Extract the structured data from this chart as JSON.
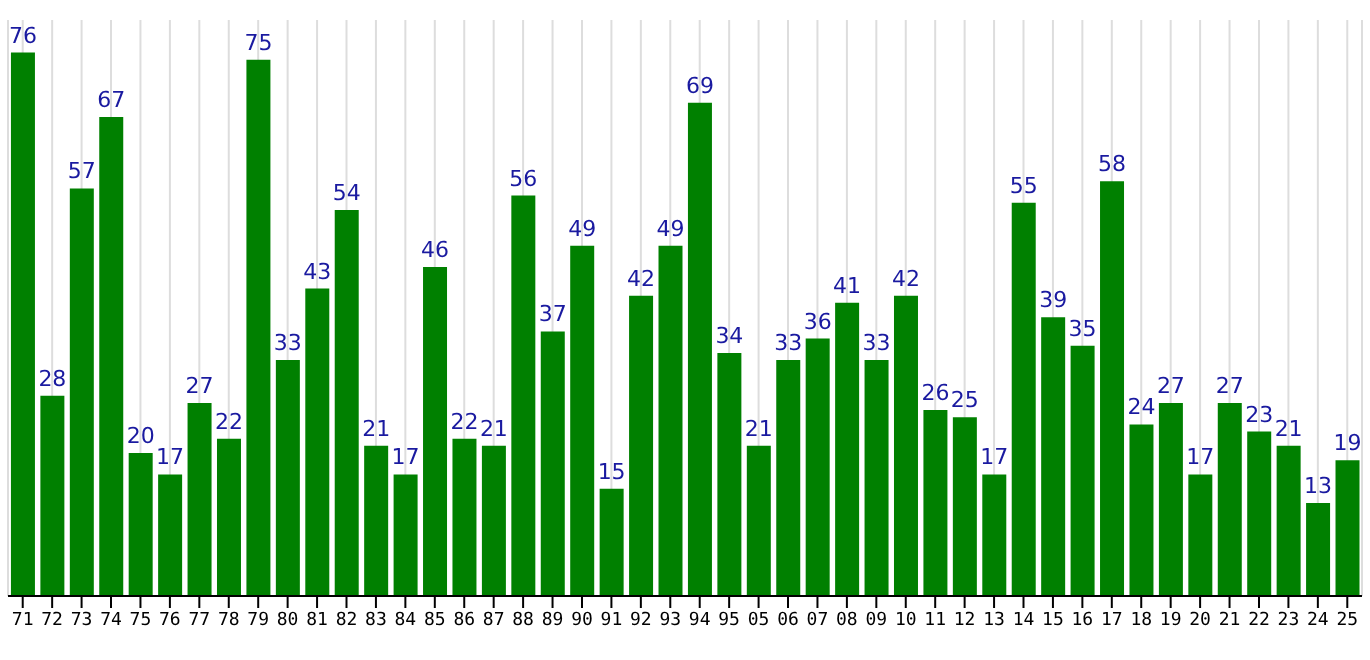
{
  "chart_data": {
    "type": "bar",
    "categories": [
      "71",
      "72",
      "73",
      "74",
      "75",
      "76",
      "77",
      "78",
      "79",
      "80",
      "81",
      "82",
      "83",
      "84",
      "85",
      "86",
      "87",
      "88",
      "89",
      "90",
      "91",
      "92",
      "93",
      "94",
      "95",
      "05",
      "06",
      "07",
      "08",
      "09",
      "10",
      "11",
      "12",
      "13",
      "14",
      "15",
      "16",
      "17",
      "18",
      "19",
      "20",
      "21",
      "22",
      "23",
      "24",
      "25"
    ],
    "values": [
      76,
      28,
      57,
      67,
      20,
      17,
      27,
      22,
      75,
      33,
      43,
      54,
      21,
      17,
      46,
      22,
      21,
      56,
      37,
      49,
      15,
      42,
      49,
      69,
      34,
      21,
      33,
      36,
      41,
      33,
      42,
      26,
      25,
      17,
      55,
      39,
      35,
      58,
      24,
      27,
      17,
      27,
      23,
      21,
      13,
      19
    ],
    "color": "#008000",
    "data_labels": true,
    "grid": "x",
    "tick_labels": "x"
  }
}
